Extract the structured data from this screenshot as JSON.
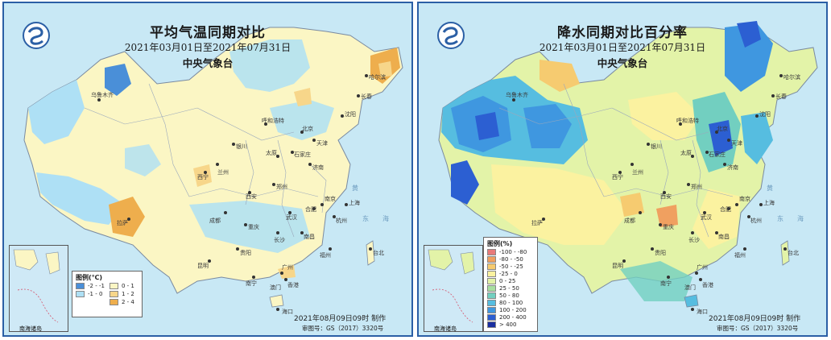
{
  "left_map": {
    "title": "平均气温同期对比",
    "date_range": "2021年03月01日至2021年07月31日",
    "agency": "中央气象台",
    "legend": {
      "title": "图例(℃)",
      "items": [
        {
          "label": "-2 - -1",
          "color": "#4a8fd8"
        },
        {
          "label": "-1 - 0",
          "color": "#aee0f5"
        },
        {
          "label": "0 - 1",
          "color": "#fbf6c4"
        },
        {
          "label": "1 - 2",
          "color": "#f7d68a"
        },
        {
          "label": "2 - 4",
          "color": "#eeae4d"
        }
      ]
    },
    "made_by": "2021年08月09日09时 制作",
    "review_no": "审图号：GS（2017）3320号",
    "inset_label": "南海诸岛",
    "seas": [
      "黄海",
      "东海"
    ]
  },
  "right_map": {
    "title": "降水同期对比百分率",
    "date_range": "2021年03月01日至2021年07月31日",
    "agency": "中央气象台",
    "legend": {
      "title": "图例(%)",
      "items": [
        {
          "label": "-100 - -80",
          "color": "#e87a7a"
        },
        {
          "label": "-80 - -50",
          "color": "#f0a060"
        },
        {
          "label": "-50 - -25",
          "color": "#f6cb70"
        },
        {
          "label": "-25 - 0",
          "color": "#fbf2a0"
        },
        {
          "label": "0 - 25",
          "color": "#e3f3a8"
        },
        {
          "label": "25 - 50",
          "color": "#a8dfa0"
        },
        {
          "label": "50 - 80",
          "color": "#72cfc0"
        },
        {
          "label": "80 - 100",
          "color": "#56bde0"
        },
        {
          "label": "100 - 200",
          "color": "#3f97e0"
        },
        {
          "label": "200 - 400",
          "color": "#2c5fd2"
        },
        {
          "label": "> 400",
          "color": "#1a2fa0"
        }
      ]
    },
    "made_by": "2021年08月09日09时 制作",
    "review_no": "审图号：GS（2017）3320号",
    "inset_label": "南海诸岛",
    "seas": [
      "黄海",
      "东海"
    ]
  },
  "cities": [
    "乌鲁木齐",
    "拉萨",
    "西宁",
    "兰州",
    "银川",
    "呼和浩特",
    "北京",
    "天津",
    "石家庄",
    "太原",
    "济南",
    "郑州",
    "西安",
    "成都",
    "重庆",
    "贵阳",
    "昆明",
    "南宁",
    "广州",
    "香港",
    "澳门",
    "海口",
    "长沙",
    "武汉",
    "南昌",
    "福州",
    "台北",
    "杭州",
    "上海",
    "南京",
    "合肥",
    "沈阳",
    "长春",
    "哈尔滨"
  ]
}
